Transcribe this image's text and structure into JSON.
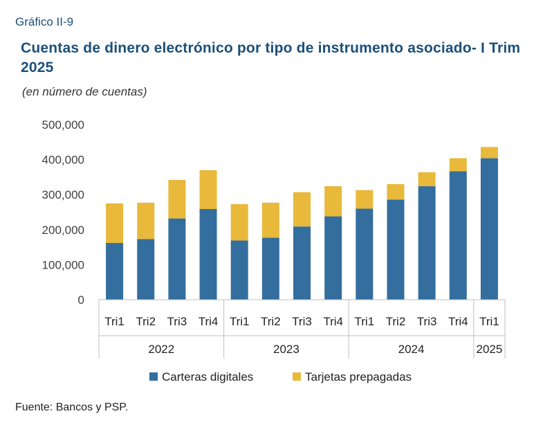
{
  "header": {
    "label": "Gráfico II-9",
    "title": "Cuentas de dinero electrónico por tipo de instrumento asociado- I Trim 2025",
    "subtitle": "(en número de cuentas)"
  },
  "footer": {
    "source": "Fuente: Bancos y PSP."
  },
  "colors": {
    "carteras": "#336e9e",
    "tarjetas": "#e8b93a"
  },
  "chart_data": {
    "type": "bar",
    "stacked": true,
    "categories": [
      "Tri1",
      "Tri2",
      "Tri3",
      "Tri4",
      "Tri1",
      "Tri2",
      "Tri3",
      "Tri4",
      "Tri1",
      "Tri2",
      "Tri3",
      "Tri4",
      "Tri1"
    ],
    "groups": [
      {
        "label": "2022",
        "start": 0,
        "count": 4
      },
      {
        "label": "2023",
        "start": 4,
        "count": 4
      },
      {
        "label": "2024",
        "start": 8,
        "count": 4
      },
      {
        "label": "2025",
        "start": 12,
        "count": 1
      }
    ],
    "series": [
      {
        "name": "Carteras digitales",
        "values": [
          162000,
          173000,
          232000,
          259000,
          169000,
          177000,
          209000,
          238000,
          260000,
          286000,
          324000,
          367000,
          404000
        ]
      },
      {
        "name": "Tarjetas prepagadas",
        "values": [
          113000,
          104000,
          110000,
          111000,
          104000,
          100000,
          98000,
          86000,
          53000,
          44000,
          40000,
          37000,
          32000
        ]
      }
    ],
    "ylim": [
      0,
      500000
    ],
    "yticks": [
      "0",
      "100,000",
      "200,000",
      "300,000",
      "400,000",
      "500,000"
    ],
    "ytick_values": [
      0,
      100000,
      200000,
      300000,
      400000,
      500000
    ],
    "legend_position": "bottom"
  }
}
